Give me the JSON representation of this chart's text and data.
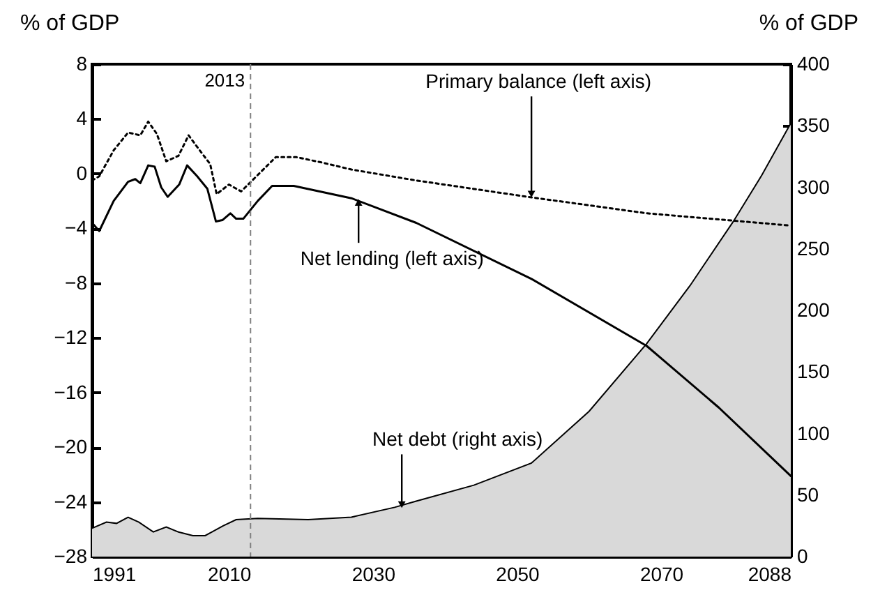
{
  "chart_data": {
    "type": "line",
    "xlabel": null,
    "ylabel": "% of GDP",
    "y2label": "% of GDP",
    "xlim": [
      1991,
      2088
    ],
    "xticks": [
      1991,
      2010,
      2030,
      2050,
      2070,
      2088
    ],
    "ylim": [
      -28,
      8
    ],
    "yticks": [
      -28,
      -24,
      -20,
      -16,
      -12,
      -8,
      -4,
      0,
      4,
      8
    ],
    "y2lim": [
      0,
      400
    ],
    "y2ticks": [
      0,
      50,
      100,
      150,
      200,
      250,
      300,
      350,
      400
    ],
    "grid": false,
    "series": [
      {
        "type": "area",
        "axis": "y2",
        "color": "#d9d9d9",
        "x": [
          1991,
          1993,
          1994.4,
          1996,
          1997.5,
          1999.5,
          2001.3,
          2003,
          2005,
          2006.7,
          2009.2,
          2011,
          2014,
          2021,
          2027,
          2033,
          2036,
          2044,
          2052,
          2060,
          2068,
          2074,
          2080,
          2084,
          2088
        ],
        "values": [
          23,
          28,
          27,
          32,
          28,
          20,
          24,
          20,
          17,
          17,
          25,
          30,
          31,
          30,
          32,
          40,
          45,
          58,
          76,
          118,
          173,
          220,
          272,
          310,
          352
        ]
      },
      {
        "axis": "y",
        "color": "#000000",
        "line_style": "dotted",
        "x": [
          1991,
          1992,
          1994,
          1996,
          1997.7,
          1998.8,
          2000,
          2001.3,
          2003,
          2004.4,
          2005.8,
          2007.4,
          2008.3,
          2010,
          2011.7,
          2014.2,
          2016.5,
          2019.4,
          2023,
          2027,
          2036,
          2051.5,
          2068,
          2088
        ],
        "values": [
          -0.5,
          -0.2,
          1.7,
          3.0,
          2.8,
          3.8,
          2.9,
          0.9,
          1.3,
          2.8,
          1.8,
          0.7,
          -1.5,
          -0.8,
          -1.3,
          0,
          1.2,
          1.2,
          0.8,
          0.3,
          -0.5,
          -1.7,
          -2.9,
          -3.8
        ]
      },
      {
        "axis": "y",
        "color": "#000000",
        "line_style": "solid",
        "x": [
          1991,
          1992,
          1994,
          1996,
          1997,
          1997.7,
          1998.8,
          1999.7,
          2000.6,
          2001.5,
          2003.1,
          2004.2,
          2005.6,
          2007,
          2008.2,
          2009.1,
          2010.2,
          2011,
          2012,
          2014,
          2016,
          2019,
          2027,
          2036,
          2052,
          2068,
          2078,
          2088
        ],
        "values": [
          -3.6,
          -4.2,
          -2.0,
          -0.6,
          -0.4,
          -0.7,
          0.6,
          0.5,
          -1.0,
          -1.7,
          -0.8,
          0.6,
          -0.2,
          -1.1,
          -3.5,
          -3.4,
          -2.9,
          -3.3,
          -3.3,
          -2.0,
          -0.9,
          -0.9,
          -1.8,
          -3.6,
          -7.7,
          -12.6,
          -17.1,
          -22.1
        ]
      }
    ],
    "ref_lines": [
      {
        "axis": "x",
        "value": 2013,
        "label": "2013",
        "color": "#808080",
        "line_style": "dashed"
      }
    ],
    "annotations": [
      {
        "text": "Primary balance (left axis)",
        "x": 2052,
        "y": -1.7
      },
      {
        "text": "Net lending (left axis)",
        "x": 2028,
        "y": -1.9
      },
      {
        "text": "Net debt (right axis)",
        "x": 2034,
        "y": -24.4
      }
    ]
  }
}
